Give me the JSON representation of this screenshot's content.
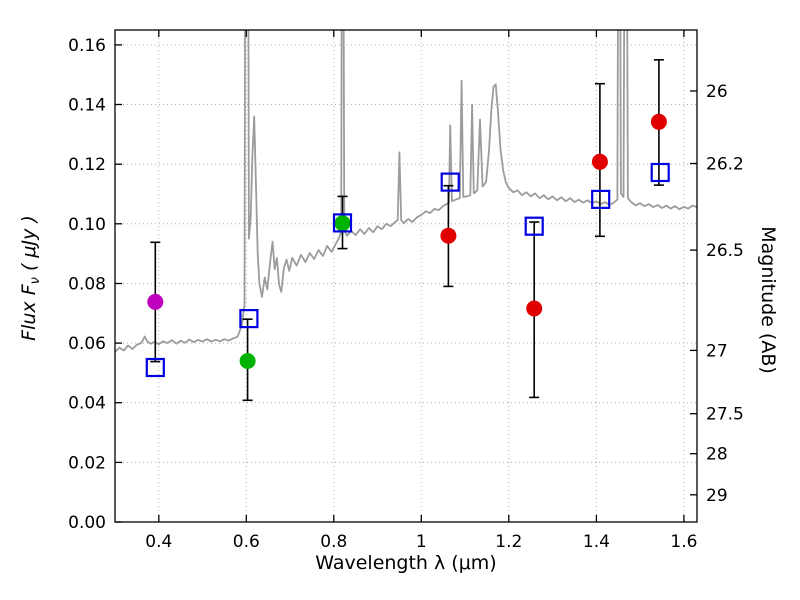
{
  "figure": {
    "background": "#ffffff",
    "xlabel": "Wavelength  λ (μm)",
    "ylabel_left_prefix": "Flux  F",
    "ylabel_left_sub": "ν",
    "ylabel_left_suffix": " ( μJy )",
    "ylabel_right": "Magnitude (AB)"
  },
  "chart_data": {
    "type": "line+scatter",
    "title": "",
    "xlabel": "Wavelength λ (μm)",
    "ylabel": "Flux Fν (μJy)",
    "ylabel_right": "Magnitude (AB)",
    "xlim": [
      0.3,
      1.63
    ],
    "ylim": [
      0.0,
      0.165
    ],
    "grid": {
      "visible": true,
      "style": "dotted",
      "color": "#b0b0b0"
    },
    "x_ticks": [
      0.4,
      0.6,
      0.8,
      1.0,
      1.2,
      1.4,
      1.6
    ],
    "x_tick_labels": [
      "0.4",
      "0.6",
      "0.8",
      "1",
      "1.2",
      "1.4",
      "1.6"
    ],
    "y_ticks": [
      0.0,
      0.02,
      0.04,
      0.06,
      0.08,
      0.1,
      0.12,
      0.14,
      0.16
    ],
    "y_tick_labels": [
      "0.00",
      "0.02",
      "0.04",
      "0.06",
      "0.08",
      "0.10",
      "0.12",
      "0.14",
      "0.16"
    ],
    "right_axis": {
      "tick_mags": [
        26,
        26.2,
        26.5,
        27,
        27.5,
        28,
        29
      ],
      "tick_labels": [
        "26",
        "26.2",
        "26.5",
        "27",
        "27.5",
        "28",
        "29"
      ],
      "ab_zeropoint": 23.9
    },
    "spectrum": {
      "name": "model-spectrum",
      "color": "#9c9c9c",
      "width": 1.8,
      "points": [
        [
          0.3,
          0.057
        ],
        [
          0.31,
          0.0585
        ],
        [
          0.32,
          0.0575
        ],
        [
          0.33,
          0.0592
        ],
        [
          0.34,
          0.058
        ],
        [
          0.35,
          0.0595
        ],
        [
          0.36,
          0.06
        ],
        [
          0.368,
          0.0622
        ],
        [
          0.374,
          0.0605
        ],
        [
          0.382,
          0.0598
        ],
        [
          0.39,
          0.0604
        ],
        [
          0.4,
          0.0596
        ],
        [
          0.41,
          0.0606
        ],
        [
          0.42,
          0.06
        ],
        [
          0.43,
          0.061
        ],
        [
          0.44,
          0.0598
        ],
        [
          0.45,
          0.0608
        ],
        [
          0.46,
          0.0601
        ],
        [
          0.47,
          0.0612
        ],
        [
          0.48,
          0.0603
        ],
        [
          0.49,
          0.0611
        ],
        [
          0.5,
          0.0605
        ],
        [
          0.51,
          0.0613
        ],
        [
          0.52,
          0.0605
        ],
        [
          0.53,
          0.0611
        ],
        [
          0.54,
          0.0606
        ],
        [
          0.55,
          0.0613
        ],
        [
          0.56,
          0.0608
        ],
        [
          0.57,
          0.0616
        ],
        [
          0.58,
          0.0621
        ],
        [
          0.59,
          0.066
        ],
        [
          0.596,
          0.073
        ],
        [
          0.599,
          0.3
        ],
        [
          0.603,
          0.3
        ],
        [
          0.606,
          0.095
        ],
        [
          0.61,
          0.102
        ],
        [
          0.614,
          0.123
        ],
        [
          0.618,
          0.136
        ],
        [
          0.622,
          0.114
        ],
        [
          0.626,
          0.09
        ],
        [
          0.63,
          0.08
        ],
        [
          0.636,
          0.0755
        ],
        [
          0.642,
          0.082
        ],
        [
          0.648,
          0.078
        ],
        [
          0.654,
          0.0865
        ],
        [
          0.66,
          0.094
        ],
        [
          0.665,
          0.0848
        ],
        [
          0.67,
          0.0885
        ],
        [
          0.675,
          0.0795
        ],
        [
          0.68,
          0.0772
        ],
        [
          0.686,
          0.0852
        ],
        [
          0.692,
          0.088
        ],
        [
          0.698,
          0.0842
        ],
        [
          0.705,
          0.0886
        ],
        [
          0.715,
          0.086
        ],
        [
          0.725,
          0.0896
        ],
        [
          0.735,
          0.0872
        ],
        [
          0.745,
          0.0902
        ],
        [
          0.755,
          0.0882
        ],
        [
          0.765,
          0.0912
        ],
        [
          0.775,
          0.0892
        ],
        [
          0.785,
          0.0926
        ],
        [
          0.795,
          0.0906
        ],
        [
          0.805,
          0.0934
        ],
        [
          0.812,
          0.0952
        ],
        [
          0.817,
          0.0975
        ],
        [
          0.82,
          0.3
        ],
        [
          0.824,
          0.0978
        ],
        [
          0.83,
          0.096
        ],
        [
          0.84,
          0.0976
        ],
        [
          0.85,
          0.0962
        ],
        [
          0.86,
          0.0982
        ],
        [
          0.87,
          0.0966
        ],
        [
          0.88,
          0.0986
        ],
        [
          0.89,
          0.0972
        ],
        [
          0.9,
          0.0992
        ],
        [
          0.91,
          0.0982
        ],
        [
          0.92,
          0.1
        ],
        [
          0.93,
          0.0992
        ],
        [
          0.94,
          0.1006
        ],
        [
          0.946,
          0.1012
        ],
        [
          0.95,
          0.124
        ],
        [
          0.954,
          0.1012
        ],
        [
          0.96,
          0.1002
        ],
        [
          0.97,
          0.1016
        ],
        [
          0.98,
          0.1006
        ],
        [
          0.99,
          0.1022
        ],
        [
          1.0,
          0.103
        ],
        [
          1.01,
          0.1042
        ],
        [
          1.02,
          0.1036
        ],
        [
          1.03,
          0.105
        ],
        [
          1.04,
          0.1046
        ],
        [
          1.05,
          0.106
        ],
        [
          1.058,
          0.1066
        ],
        [
          1.063,
          0.107
        ],
        [
          1.066,
          0.133
        ],
        [
          1.07,
          0.1076
        ],
        [
          1.08,
          0.1082
        ],
        [
          1.088,
          0.1086
        ],
        [
          1.092,
          0.148
        ],
        [
          1.096,
          0.109
        ],
        [
          1.104,
          0.1092
        ],
        [
          1.112,
          0.1096
        ],
        [
          1.116,
          0.14
        ],
        [
          1.12,
          0.1102
        ],
        [
          1.128,
          0.1112
        ],
        [
          1.134,
          0.135
        ],
        [
          1.14,
          0.1125
        ],
        [
          1.148,
          0.114
        ],
        [
          1.155,
          0.125
        ],
        [
          1.16,
          0.138
        ],
        [
          1.165,
          0.146
        ],
        [
          1.17,
          0.1468
        ],
        [
          1.175,
          0.138
        ],
        [
          1.181,
          0.125
        ],
        [
          1.187,
          0.118
        ],
        [
          1.193,
          0.114
        ],
        [
          1.2,
          0.112
        ],
        [
          1.21,
          0.1106
        ],
        [
          1.22,
          0.1112
        ],
        [
          1.23,
          0.1096
        ],
        [
          1.24,
          0.1106
        ],
        [
          1.25,
          0.1092
        ],
        [
          1.26,
          0.1102
        ],
        [
          1.27,
          0.1086
        ],
        [
          1.28,
          0.1096
        ],
        [
          1.29,
          0.1082
        ],
        [
          1.3,
          0.1092
        ],
        [
          1.31,
          0.1079
        ],
        [
          1.32,
          0.1089
        ],
        [
          1.33,
          0.1076
        ],
        [
          1.34,
          0.1086
        ],
        [
          1.35,
          0.1073
        ],
        [
          1.36,
          0.1081
        ],
        [
          1.37,
          0.1071
        ],
        [
          1.38,
          0.1079
        ],
        [
          1.39,
          0.1069
        ],
        [
          1.4,
          0.1076
        ],
        [
          1.41,
          0.1066
        ],
        [
          1.42,
          0.1073
        ],
        [
          1.43,
          0.1063
        ],
        [
          1.44,
          0.1071
        ],
        [
          1.448,
          0.1082
        ],
        [
          1.452,
          0.3
        ],
        [
          1.456,
          0.1102
        ],
        [
          1.462,
          0.109
        ],
        [
          1.467,
          0.3
        ],
        [
          1.472,
          0.1086
        ],
        [
          1.48,
          0.1072
        ],
        [
          1.49,
          0.1062
        ],
        [
          1.5,
          0.1069
        ],
        [
          1.51,
          0.1059
        ],
        [
          1.52,
          0.1066
        ],
        [
          1.53,
          0.1056
        ],
        [
          1.54,
          0.1063
        ],
        [
          1.55,
          0.1053
        ],
        [
          1.56,
          0.1061
        ],
        [
          1.57,
          0.1051
        ],
        [
          1.58,
          0.1059
        ],
        [
          1.59,
          0.1049
        ],
        [
          1.6,
          0.1057
        ],
        [
          1.61,
          0.1051
        ],
        [
          1.62,
          0.1061
        ],
        [
          1.63,
          0.1056
        ]
      ]
    },
    "series": [
      {
        "name": "observed-flux-uv",
        "marker": "circle",
        "color": "#bf00bf",
        "points": [
          {
            "x": 0.392,
            "y": 0.0738,
            "err_lo": 0.02,
            "err_hi": 0.02
          }
        ]
      },
      {
        "name": "observed-flux-optical",
        "marker": "circle",
        "color": "#00b300",
        "points": [
          {
            "x": 0.603,
            "y": 0.054,
            "err_lo": 0.0132,
            "err_hi": 0.014
          },
          {
            "x": 0.82,
            "y": 0.1002,
            "err_lo": 0.0085,
            "err_hi": 0.009
          }
        ]
      },
      {
        "name": "observed-flux-infrared",
        "marker": "circle",
        "color": "#e00000",
        "points": [
          {
            "x": 1.062,
            "y": 0.096,
            "err_lo": 0.017,
            "err_hi": 0.0168
          },
          {
            "x": 1.258,
            "y": 0.0716,
            "err_lo": 0.0298,
            "err_hi": 0.029
          },
          {
            "x": 1.408,
            "y": 0.1208,
            "err_lo": 0.025,
            "err_hi": 0.0262
          },
          {
            "x": 1.543,
            "y": 0.1342,
            "err_lo": 0.0212,
            "err_hi": 0.0208
          }
        ]
      },
      {
        "name": "model-photometry",
        "marker": "square-open",
        "color": "#0000e0",
        "points": [
          {
            "x": 0.392,
            "y": 0.0518
          },
          {
            "x": 0.606,
            "y": 0.0682
          },
          {
            "x": 0.82,
            "y": 0.1003
          },
          {
            "x": 1.066,
            "y": 0.114
          },
          {
            "x": 1.258,
            "y": 0.0992
          },
          {
            "x": 1.41,
            "y": 0.1082
          },
          {
            "x": 1.546,
            "y": 0.1172
          }
        ]
      }
    ]
  }
}
